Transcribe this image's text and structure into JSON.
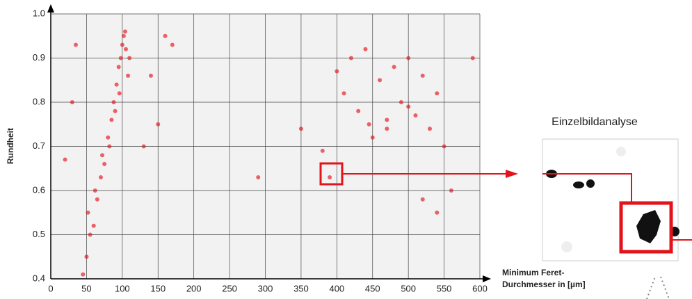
{
  "chart_data": {
    "type": "scatter",
    "x_label": [
      "Minimum Feret-",
      "Durchmesser in [µm]"
    ],
    "y_label": "Rundheit",
    "inset_title": "Einzelbildanalyse",
    "color": "#e3131b",
    "grid": true,
    "xlim": [
      0,
      600
    ],
    "xticks": [
      0,
      50,
      100,
      150,
      200,
      250,
      300,
      350,
      400,
      450,
      500,
      550,
      600
    ],
    "ylim": [
      0.4,
      1
    ],
    "yticks": [
      0.4,
      0.5,
      0.6,
      0.7,
      0.8,
      0.9,
      {
        "value": 1,
        "label": "1.0"
      }
    ],
    "x": [
      45,
      50,
      55,
      52,
      60,
      62,
      65,
      70,
      72,
      75,
      80,
      82,
      85,
      88,
      90,
      92,
      95,
      98,
      100,
      102,
      105,
      108,
      96,
      104,
      110,
      30,
      35,
      160,
      170,
      140,
      150,
      130,
      20,
      290,
      350,
      400,
      420,
      440,
      460,
      480,
      500,
      520,
      540,
      430,
      450,
      470,
      490,
      510,
      530,
      550,
      410,
      380,
      390,
      560,
      540,
      520,
      590,
      470,
      500,
      445
    ],
    "y": [
      0.41,
      0.45,
      0.5,
      0.55,
      0.52,
      0.6,
      0.58,
      0.63,
      0.68,
      0.66,
      0.72,
      0.7,
      0.76,
      0.8,
      0.78,
      0.84,
      0.88,
      0.9,
      0.93,
      0.95,
      0.92,
      0.86,
      0.82,
      0.96,
      0.9,
      0.8,
      0.93,
      0.95,
      0.93,
      0.86,
      0.75,
      0.7,
      0.67,
      0.63,
      0.74,
      0.87,
      0.9,
      0.92,
      0.85,
      0.88,
      0.9,
      0.86,
      0.82,
      0.78,
      0.72,
      0.76,
      0.8,
      0.77,
      0.74,
      0.7,
      0.82,
      0.69,
      0.63,
      0.6,
      0.55,
      0.58,
      0.9,
      0.74,
      0.79,
      0.75
    ]
  }
}
